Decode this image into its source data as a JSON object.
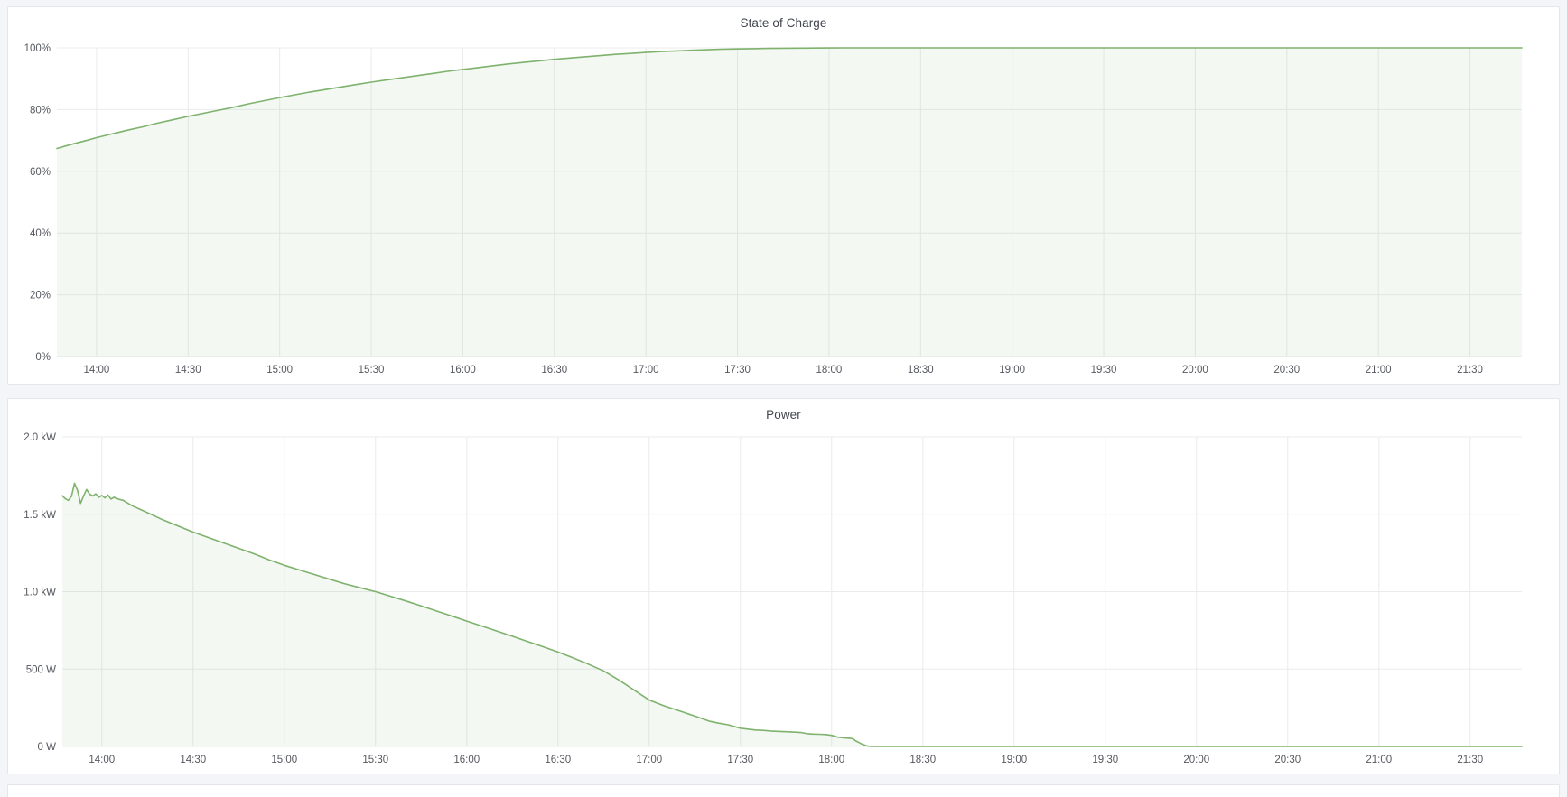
{
  "page": {
    "background_color": "#f4f5f9",
    "panel_border_color": "#e3e6eb",
    "grid_color": "#ebebeb",
    "axis_text_color": "#55585e",
    "title_color": "#41454c",
    "accent_green": "#7eb26d"
  },
  "panels": [
    {
      "title": "State of Charge"
    },
    {
      "title": "Power"
    }
  ],
  "chart_data": [
    {
      "type": "area",
      "title": "State of Charge",
      "unit": "%",
      "xlabel": "",
      "ylabel": "",
      "x_time_range": [
        "13:47",
        "21:47"
      ],
      "x_range_minutes": [
        0,
        480
      ],
      "ylim": [
        0,
        100
      ],
      "grid": true,
      "legend": "none",
      "line_color": "#7eb26d",
      "fill_color": "rgba(126,178,109,0.09)",
      "x_ticks": [
        {
          "label": "14:00",
          "t": 13
        },
        {
          "label": "14:30",
          "t": 43
        },
        {
          "label": "15:00",
          "t": 73
        },
        {
          "label": "15:30",
          "t": 103
        },
        {
          "label": "16:00",
          "t": 133
        },
        {
          "label": "16:30",
          "t": 163
        },
        {
          "label": "17:00",
          "t": 193
        },
        {
          "label": "17:30",
          "t": 223
        },
        {
          "label": "18:00",
          "t": 253
        },
        {
          "label": "18:30",
          "t": 283
        },
        {
          "label": "19:00",
          "t": 313
        },
        {
          "label": "19:30",
          "t": 343
        },
        {
          "label": "20:00",
          "t": 373
        },
        {
          "label": "20:30",
          "t": 403
        },
        {
          "label": "21:00",
          "t": 433
        },
        {
          "label": "21:30",
          "t": 463
        }
      ],
      "y_ticks": [
        {
          "label": "0%",
          "v": 0
        },
        {
          "label": "20%",
          "v": 20
        },
        {
          "label": "40%",
          "v": 40
        },
        {
          "label": "60%",
          "v": 60
        },
        {
          "label": "80%",
          "v": 80
        },
        {
          "label": "100%",
          "v": 100
        }
      ],
      "series": [
        {
          "name": "State of Charge",
          "points_t_min_value": [
            [
              0,
              67.4
            ],
            [
              5,
              68.8
            ],
            [
              10,
              70.1
            ],
            [
              13,
              70.9
            ],
            [
              18,
              72.1
            ],
            [
              23,
              73.3
            ],
            [
              28,
              74.4
            ],
            [
              33,
              75.6
            ],
            [
              38,
              76.7
            ],
            [
              43,
              77.8
            ],
            [
              48,
              78.8
            ],
            [
              53,
              79.8
            ],
            [
              58,
              80.8
            ],
            [
              63,
              81.9
            ],
            [
              68,
              82.9
            ],
            [
              73,
              83.9
            ],
            [
              78,
              84.8
            ],
            [
              83,
              85.7
            ],
            [
              88,
              86.5
            ],
            [
              93,
              87.3
            ],
            [
              98,
              88.1
            ],
            [
              103,
              88.9
            ],
            [
              108,
              89.6
            ],
            [
              113,
              90.3
            ],
            [
              118,
              91.0
            ],
            [
              123,
              91.7
            ],
            [
              128,
              92.4
            ],
            [
              133,
              93.0
            ],
            [
              138,
              93.6
            ],
            [
              143,
              94.2
            ],
            [
              148,
              94.8
            ],
            [
              153,
              95.3
            ],
            [
              158,
              95.8
            ],
            [
              163,
              96.3
            ],
            [
              168,
              96.7
            ],
            [
              173,
              97.1
            ],
            [
              178,
              97.5
            ],
            [
              183,
              97.9
            ],
            [
              188,
              98.2
            ],
            [
              193,
              98.5
            ],
            [
              198,
              98.8
            ],
            [
              203,
              99.0
            ],
            [
              208,
              99.2
            ],
            [
              213,
              99.4
            ],
            [
              218,
              99.55
            ],
            [
              223,
              99.65
            ],
            [
              228,
              99.75
            ],
            [
              233,
              99.82
            ],
            [
              238,
              99.88
            ],
            [
              243,
              99.92
            ],
            [
              248,
              99.95
            ],
            [
              253,
              99.97
            ],
            [
              258,
              99.99
            ],
            [
              263,
              100
            ],
            [
              300,
              100
            ],
            [
              360,
              100
            ],
            [
              420,
              100
            ],
            [
              480,
              100
            ]
          ]
        }
      ]
    },
    {
      "type": "area",
      "title": "Power",
      "unit": "W",
      "xlabel": "",
      "ylabel": "",
      "x_time_range": [
        "13:47",
        "21:47"
      ],
      "x_range_minutes": [
        0,
        480
      ],
      "ylim": [
        0,
        2000
      ],
      "grid": true,
      "legend": "none",
      "line_color": "#7eb26d",
      "fill_color": "rgba(126,178,109,0.09)",
      "x_ticks": [
        {
          "label": "14:00",
          "t": 13
        },
        {
          "label": "14:30",
          "t": 43
        },
        {
          "label": "15:00",
          "t": 73
        },
        {
          "label": "15:30",
          "t": 103
        },
        {
          "label": "16:00",
          "t": 133
        },
        {
          "label": "16:30",
          "t": 163
        },
        {
          "label": "17:00",
          "t": 193
        },
        {
          "label": "17:30",
          "t": 223
        },
        {
          "label": "18:00",
          "t": 253
        },
        {
          "label": "18:30",
          "t": 283
        },
        {
          "label": "19:00",
          "t": 313
        },
        {
          "label": "19:30",
          "t": 343
        },
        {
          "label": "20:00",
          "t": 373
        },
        {
          "label": "20:30",
          "t": 403
        },
        {
          "label": "21:00",
          "t": 433
        },
        {
          "label": "21:30",
          "t": 463
        }
      ],
      "y_ticks": [
        {
          "label": "0 W",
          "v": 0
        },
        {
          "label": "500 W",
          "v": 500
        },
        {
          "label": "1.0 kW",
          "v": 1000
        },
        {
          "label": "1.5 kW",
          "v": 1500
        },
        {
          "label": "2.0 kW",
          "v": 2000
        }
      ],
      "series": [
        {
          "name": "Power",
          "points_t_min_value": [
            [
              0,
              1620
            ],
            [
              1,
              1600
            ],
            [
              2,
              1590
            ],
            [
              3,
              1615
            ],
            [
              4,
              1700
            ],
            [
              5,
              1655
            ],
            [
              6,
              1570
            ],
            [
              7,
              1620
            ],
            [
              8,
              1660
            ],
            [
              9,
              1630
            ],
            [
              10,
              1618
            ],
            [
              11,
              1632
            ],
            [
              12,
              1610
            ],
            [
              13,
              1622
            ],
            [
              14,
              1605
            ],
            [
              15,
              1625
            ],
            [
              16,
              1598
            ],
            [
              17,
              1610
            ],
            [
              18,
              1600
            ],
            [
              20,
              1590
            ],
            [
              23,
              1555
            ],
            [
              28,
              1510
            ],
            [
              33,
              1465
            ],
            [
              38,
              1425
            ],
            [
              43,
              1385
            ],
            [
              48,
              1350
            ],
            [
              53,
              1315
            ],
            [
              58,
              1280
            ],
            [
              63,
              1245
            ],
            [
              68,
              1205
            ],
            [
              73,
              1170
            ],
            [
              78,
              1140
            ],
            [
              83,
              1110
            ],
            [
              88,
              1080
            ],
            [
              93,
              1050
            ],
            [
              98,
              1025
            ],
            [
              103,
              1000
            ],
            [
              108,
              970
            ],
            [
              113,
              940
            ],
            [
              118,
              908
            ],
            [
              123,
              875
            ],
            [
              128,
              843
            ],
            [
              133,
              810
            ],
            [
              138,
              778
            ],
            [
              143,
              745
            ],
            [
              148,
              712
            ],
            [
              153,
              678
            ],
            [
              158,
              645
            ],
            [
              163,
              610
            ],
            [
              168,
              572
            ],
            [
              173,
              532
            ],
            [
              178,
              488
            ],
            [
              183,
              430
            ],
            [
              188,
              365
            ],
            [
              193,
              300
            ],
            [
              198,
              262
            ],
            [
              203,
              230
            ],
            [
              208,
              196
            ],
            [
              213,
              162
            ],
            [
              216,
              150
            ],
            [
              219,
              140
            ],
            [
              223,
              118
            ],
            [
              226,
              110
            ],
            [
              228,
              106
            ],
            [
              231,
              103
            ],
            [
              233,
              100
            ],
            [
              236,
              97
            ],
            [
              238,
              95
            ],
            [
              241,
              92
            ],
            [
              243,
              90
            ],
            [
              245,
              82
            ],
            [
              247,
              80
            ],
            [
              249,
              79
            ],
            [
              251,
              77
            ],
            [
              253,
              72
            ],
            [
              255,
              60
            ],
            [
              257,
              56
            ],
            [
              259,
              53
            ],
            [
              260,
              50
            ],
            [
              261,
              35
            ],
            [
              262,
              25
            ],
            [
              263,
              15
            ],
            [
              264,
              8
            ],
            [
              265,
              2
            ],
            [
              266,
              0
            ],
            [
              300,
              0
            ],
            [
              360,
              0
            ],
            [
              420,
              0
            ],
            [
              480,
              0
            ]
          ]
        }
      ]
    }
  ]
}
